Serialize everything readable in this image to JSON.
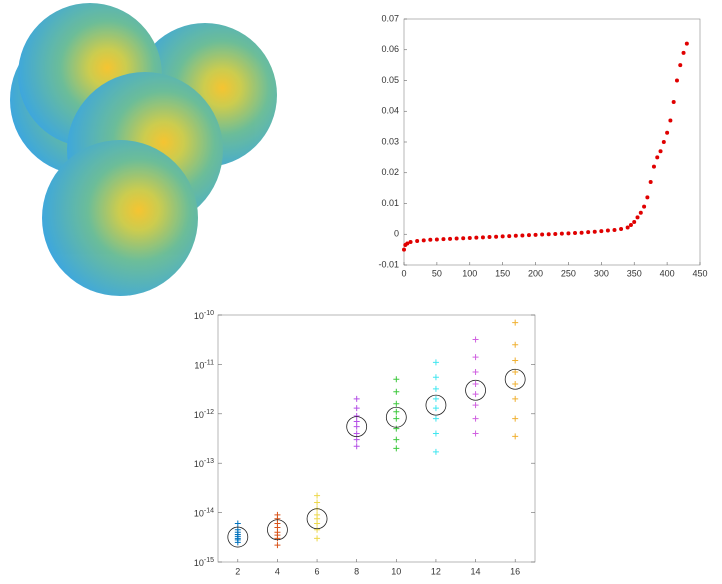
{
  "chart_data": [
    {
      "type": "scatter",
      "color": "#e00000",
      "x": [
        0,
        2,
        5,
        10,
        20,
        30,
        40,
        50,
        60,
        70,
        80,
        90,
        100,
        110,
        120,
        130,
        140,
        150,
        160,
        170,
        180,
        190,
        200,
        210,
        220,
        230,
        240,
        250,
        260,
        270,
        280,
        290,
        300,
        310,
        320,
        330,
        340,
        345,
        350,
        355,
        360,
        365,
        370,
        375,
        380,
        385,
        390,
        395,
        400,
        405,
        410,
        415,
        420,
        425,
        430
      ],
      "values": [
        -0.005,
        -0.0035,
        -0.003,
        -0.0025,
        -0.0022,
        -0.002,
        -0.0018,
        -0.0017,
        -0.0016,
        -0.0015,
        -0.0014,
        -0.0013,
        -0.0012,
        -0.0011,
        -0.001,
        -0.0009,
        -0.0008,
        -0.0007,
        -0.0006,
        -0.0005,
        -0.0004,
        -0.0003,
        -0.0002,
        -0.0001,
        0,
        0.0001,
        0.0002,
        0.0003,
        0.0004,
        0.0005,
        0.0007,
        0.0008,
        0.001,
        0.0012,
        0.0014,
        0.0017,
        0.0022,
        0.003,
        0.004,
        0.0055,
        0.007,
        0.009,
        0.012,
        0.017,
        0.022,
        0.025,
        0.027,
        0.03,
        0.033,
        0.037,
        0.043,
        0.05,
        0.055,
        0.059,
        0.062
      ],
      "xlim": [
        0,
        450
      ],
      "xticks": [
        0,
        50,
        100,
        150,
        200,
        250,
        300,
        350,
        400,
        450
      ],
      "ylim": [
        -0.01,
        0.07
      ],
      "yticks": [
        -0.01,
        0,
        0.01,
        0.02,
        0.03,
        0.04,
        0.05,
        0.06,
        0.07
      ],
      "grid": false
    },
    {
      "type": "strip",
      "log_y": true,
      "xlim": [
        1,
        17
      ],
      "xticks": [
        2,
        4,
        6,
        8,
        10,
        12,
        14,
        16
      ],
      "ylim": [
        1e-15,
        1e-10
      ],
      "yticks": [
        {
          "value": 1e-15,
          "label": "10^-15"
        },
        {
          "value": 1e-14,
          "label": "10^-14"
        },
        {
          "value": 1e-13,
          "label": "10^-13"
        },
        {
          "value": 1e-12,
          "label": "10^-12"
        },
        {
          "value": 1e-11,
          "label": "10^-11"
        },
        {
          "value": 1e-10,
          "label": "10^-10"
        }
      ],
      "groups": [
        {
          "x": 2,
          "color": "#0072bd",
          "mean": 3.2e-15,
          "samples": [
            2.5e-15,
            2.8e-15,
            3e-15,
            3.3e-15,
            3.6e-15,
            4e-15,
            4.5e-15,
            6e-15
          ]
        },
        {
          "x": 4,
          "color": "#d95319",
          "mean": 4.5e-15,
          "samples": [
            2.2e-15,
            3e-15,
            3.5e-15,
            4e-15,
            5e-15,
            6e-15,
            7.5e-15,
            9e-15
          ]
        },
        {
          "x": 6,
          "color": "#edd84a",
          "mean": 7.5e-15,
          "samples": [
            3e-15,
            4.5e-15,
            6e-15,
            7.5e-15,
            9e-15,
            1.2e-14,
            1.6e-14,
            2.2e-14
          ]
        },
        {
          "x": 8,
          "color": "#b450e6",
          "mean": 5.5e-13,
          "samples": [
            2.2e-13,
            3e-13,
            4e-13,
            5.5e-13,
            7e-13,
            9e-13,
            1.3e-12,
            2e-12
          ]
        },
        {
          "x": 10,
          "color": "#3cc83c",
          "mean": 8.5e-13,
          "samples": [
            2e-13,
            3e-13,
            5e-13,
            8e-13,
            1.1e-12,
            1.6e-12,
            2.8e-12,
            5e-12
          ]
        },
        {
          "x": 12,
          "color": "#40e6f0",
          "mean": 1.5e-12,
          "samples": [
            1.7e-13,
            4e-13,
            8e-13,
            1.3e-12,
            2e-12,
            3.2e-12,
            5.5e-12,
            1.1e-11
          ]
        },
        {
          "x": 14,
          "color": "#d060e0",
          "mean": 3e-12,
          "samples": [
            4e-13,
            8e-13,
            1.5e-12,
            2.5e-12,
            4e-12,
            7e-12,
            1.4e-11,
            3.2e-11
          ]
        },
        {
          "x": 16,
          "color": "#f0b030",
          "mean": 5e-12,
          "samples": [
            3.5e-13,
            8e-13,
            2e-12,
            4e-12,
            7e-12,
            1.2e-11,
            2.5e-11,
            7e-11
          ]
        }
      ]
    }
  ]
}
